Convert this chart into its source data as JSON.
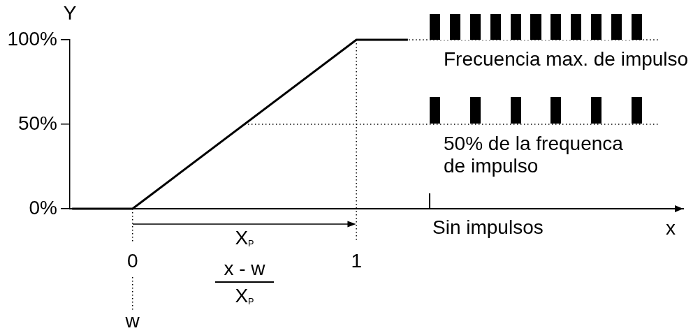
{
  "chart_data": {
    "type": "line",
    "ylabel": "Y",
    "xlabel": "x",
    "x": [
      -0.27,
      0,
      1,
      1.23
    ],
    "values": [
      0,
      0,
      100,
      100
    ],
    "color": "#000000",
    "xlim": [
      -0.28,
      2.46
    ],
    "xticks": [
      0,
      1
    ],
    "ylim": [
      0,
      100
    ],
    "yticks": [
      {
        "value": 0,
        "label": "0%"
      },
      {
        "value": 50,
        "label": "50%"
      },
      {
        "value": 100,
        "label": "100%"
      }
    ],
    "ref_lines": [
      {
        "axis": "y",
        "value": 100,
        "label": "Frecuencia max. de impulso",
        "line_style": "dotted"
      },
      {
        "axis": "y",
        "value": 50,
        "label": "50% de la frequenca\nde impulso",
        "line_style": "dotted"
      },
      {
        "axis": "x",
        "value": 0,
        "label": "w",
        "line_style": "dotted"
      },
      {
        "axis": "x",
        "value": 1,
        "line_style": "dotted"
      }
    ],
    "annotations": [
      "X$_{P}$",
      "x - w",
      "X$_{P}$",
      "Sin impulsos"
    ]
  }
}
